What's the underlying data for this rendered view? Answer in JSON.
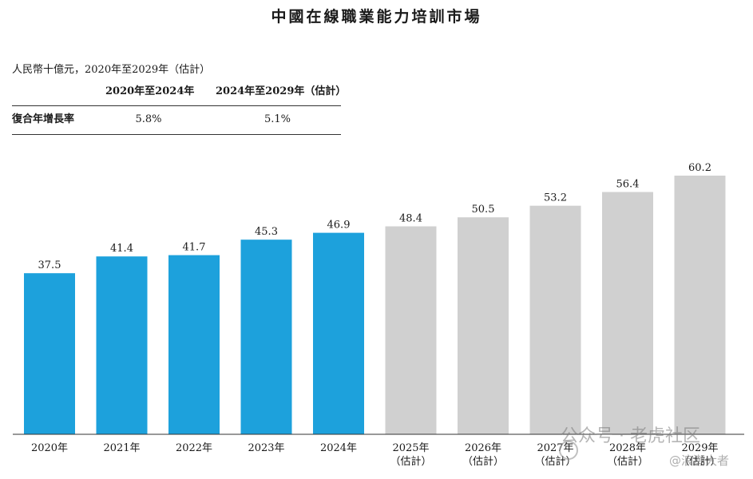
{
  "chart_data": {
    "type": "bar",
    "title": "中國在線職業能力培訓市場",
    "unit": "人民幣十億元，2020年至2029年（估計）",
    "categories": [
      [
        "2020年"
      ],
      [
        "2021年"
      ],
      [
        "2022年"
      ],
      [
        "2023年"
      ],
      [
        "2024年"
      ],
      [
        "2025年",
        "（估計）"
      ],
      [
        "2026年",
        "（估計）"
      ],
      [
        "2027年",
        "（估計）"
      ],
      [
        "2028年",
        "（估計）"
      ],
      [
        "2029年",
        "（估計）"
      ]
    ],
    "values": [
      37.5,
      41.4,
      41.7,
      45.3,
      46.9,
      48.4,
      50.5,
      53.2,
      56.4,
      60.2
    ],
    "estimated": [
      false,
      false,
      false,
      false,
      false,
      true,
      true,
      true,
      true,
      true
    ],
    "colors": {
      "historical": "#1da1dc",
      "estimated": "#d0d0d0",
      "axis": "#333333"
    },
    "ylim": [
      0,
      60.2
    ],
    "grid": false,
    "cagr_table": {
      "headers": [
        "",
        "2020年至2024年",
        "2024年至2029年（估計）"
      ],
      "row": {
        "label": "復合年增長率",
        "values": [
          "5.8%",
          "5.1%"
        ]
      }
    }
  },
  "watermark": {
    "text": "公众号 · 老虎社区",
    "small": "@浪潮大者"
  }
}
